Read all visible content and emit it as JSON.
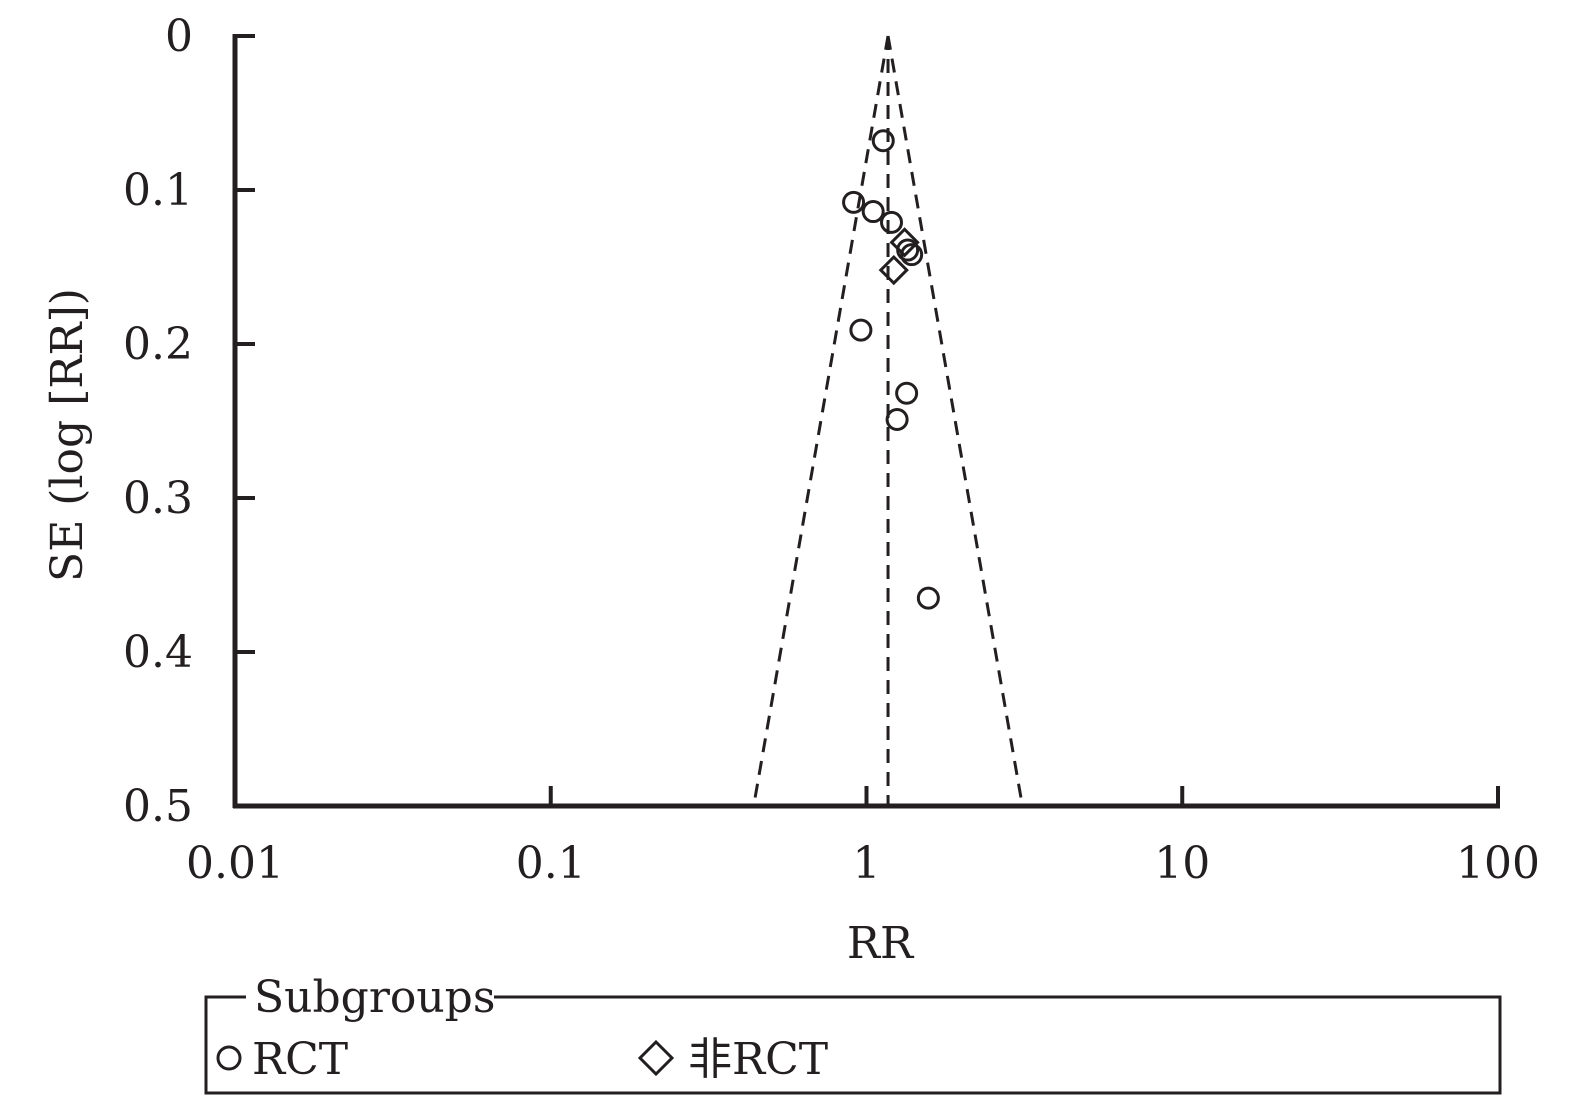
{
  "chart_data": {
    "type": "scatter",
    "title": "",
    "xlabel": "RR",
    "ylabel": "SE (log [RR])",
    "x_scale": "log",
    "xlim": [
      0.01,
      100
    ],
    "ylim": [
      0,
      0.5
    ],
    "y_inverted": true,
    "x_ticks": [
      "0.01",
      "0.1",
      "1",
      "10",
      "100"
    ],
    "y_ticks": [
      "0",
      "0.1",
      "0.2",
      "0.3",
      "0.4",
      "0.5"
    ],
    "pooled_estimate": 1.17,
    "grid": false,
    "legend": {
      "title": "Subgroups",
      "placement": "bottom",
      "entries": [
        {
          "label": "RCT",
          "marker": "circle"
        },
        {
          "label": "非RCT",
          "marker": "diamond"
        }
      ]
    },
    "series": [
      {
        "name": "RCT",
        "marker": "circle",
        "points": [
          {
            "x": 1.13,
            "y": 0.068
          },
          {
            "x": 0.91,
            "y": 0.108
          },
          {
            "x": 1.05,
            "y": 0.114
          },
          {
            "x": 1.2,
            "y": 0.121
          },
          {
            "x": 1.35,
            "y": 0.139
          },
          {
            "x": 1.39,
            "y": 0.142
          },
          {
            "x": 0.96,
            "y": 0.191
          },
          {
            "x": 1.34,
            "y": 0.232
          },
          {
            "x": 1.25,
            "y": 0.249
          },
          {
            "x": 1.57,
            "y": 0.365
          }
        ]
      },
      {
        "name": "非RCT",
        "marker": "diamond",
        "points": [
          {
            "x": 1.32,
            "y": 0.134
          },
          {
            "x": 1.22,
            "y": 0.152
          }
        ]
      }
    ]
  }
}
